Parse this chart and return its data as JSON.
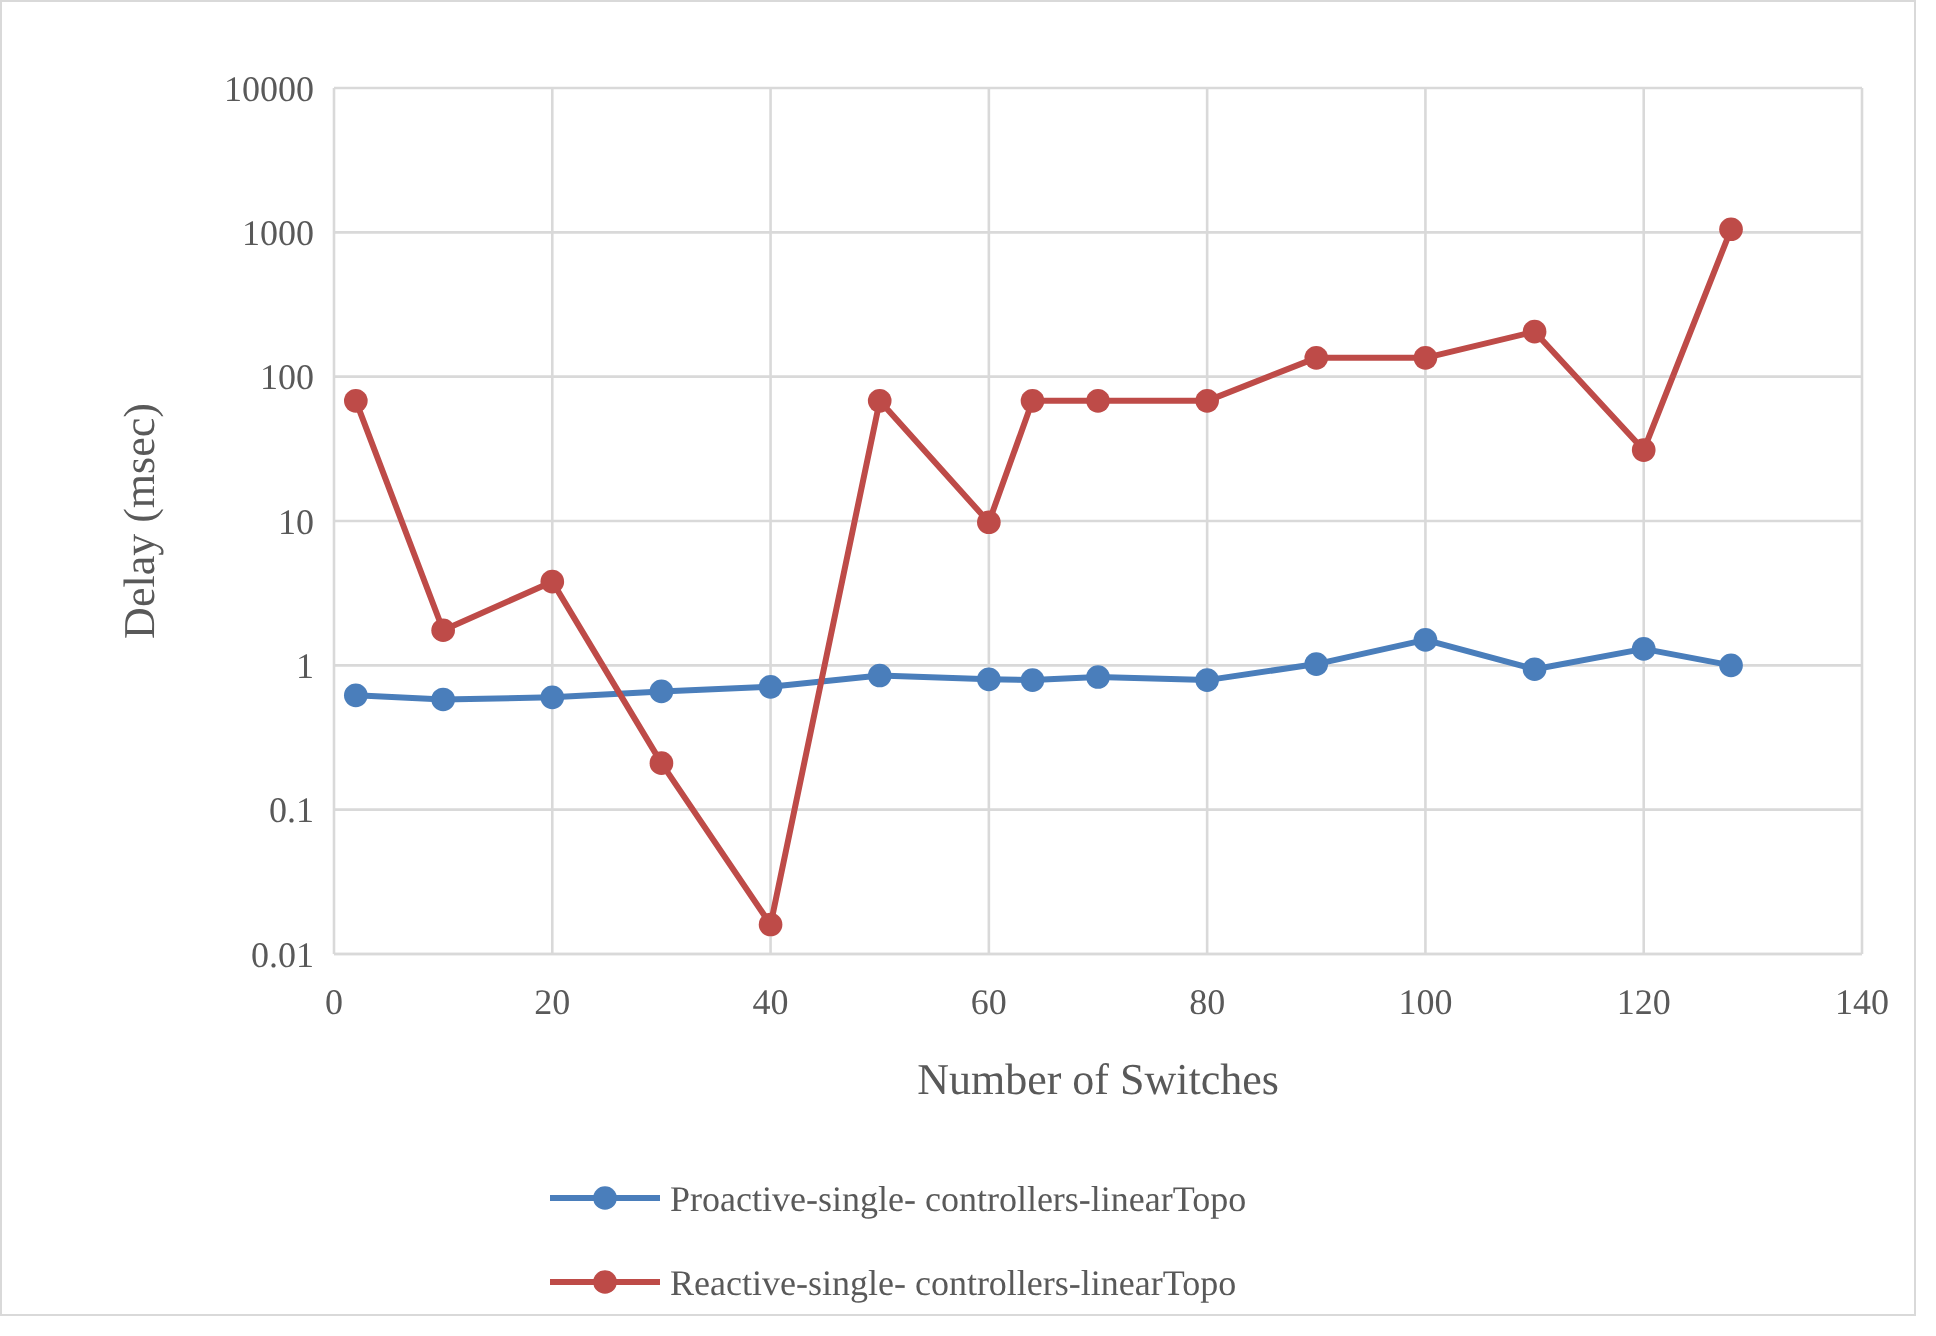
{
  "chart_data": {
    "type": "line",
    "xlabel": "Number of Switches",
    "ylabel": "Delay (msec)",
    "x": [
      2,
      10,
      20,
      30,
      40,
      50,
      60,
      64,
      70,
      80,
      90,
      100,
      110,
      120,
      128
    ],
    "xlim": [
      0,
      140
    ],
    "xticks": [
      0,
      20,
      40,
      60,
      80,
      100,
      120,
      140
    ],
    "ylim": [
      0.01,
      10000
    ],
    "yticks": [
      0.01,
      0.1,
      1,
      10,
      100,
      1000,
      10000
    ],
    "log": "y",
    "grid": true,
    "legend": "bottom",
    "marker": "circle",
    "line_style": "solid",
    "series": [
      {
        "name": "Proactive-single- controllers-linearTopo",
        "color": "#4a7ebb",
        "values": [
          0.62,
          0.58,
          0.6,
          0.66,
          0.71,
          0.85,
          0.8,
          0.79,
          0.83,
          0.79,
          1.02,
          1.5,
          0.94,
          1.3,
          1.0
        ]
      },
      {
        "name": "Reactive-single- controllers-linearTopo",
        "color": "#be4b48",
        "values": [
          68,
          1.75,
          3.8,
          0.21,
          0.016,
          68,
          9.8,
          68,
          68,
          68,
          135,
          135,
          205,
          31,
          1050
        ]
      }
    ]
  }
}
